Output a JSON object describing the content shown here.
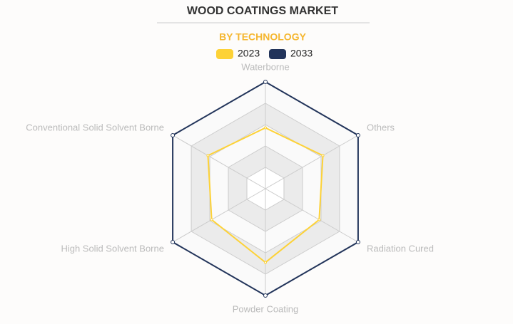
{
  "chart_data": {
    "type": "radar",
    "title": "WOOD COATINGS MARKET",
    "subtitle": "BY TECHNOLOGY",
    "categories": [
      "Waterborne",
      "Others",
      "Radiation Cured",
      "Powder Coating",
      "High Solid Solvent Borne",
      "Conventional Solid Solvent Borne"
    ],
    "series": [
      {
        "name": "2023",
        "color": "#fdd237",
        "values": [
          57,
          62,
          58,
          69,
          58,
          62
        ]
      },
      {
        "name": "2033",
        "color": "#22345a",
        "values": [
          100,
          100,
          100,
          100,
          100,
          100
        ]
      }
    ],
    "rlim": [
      0,
      100
    ],
    "grid_levels": 5,
    "legend": "top"
  }
}
